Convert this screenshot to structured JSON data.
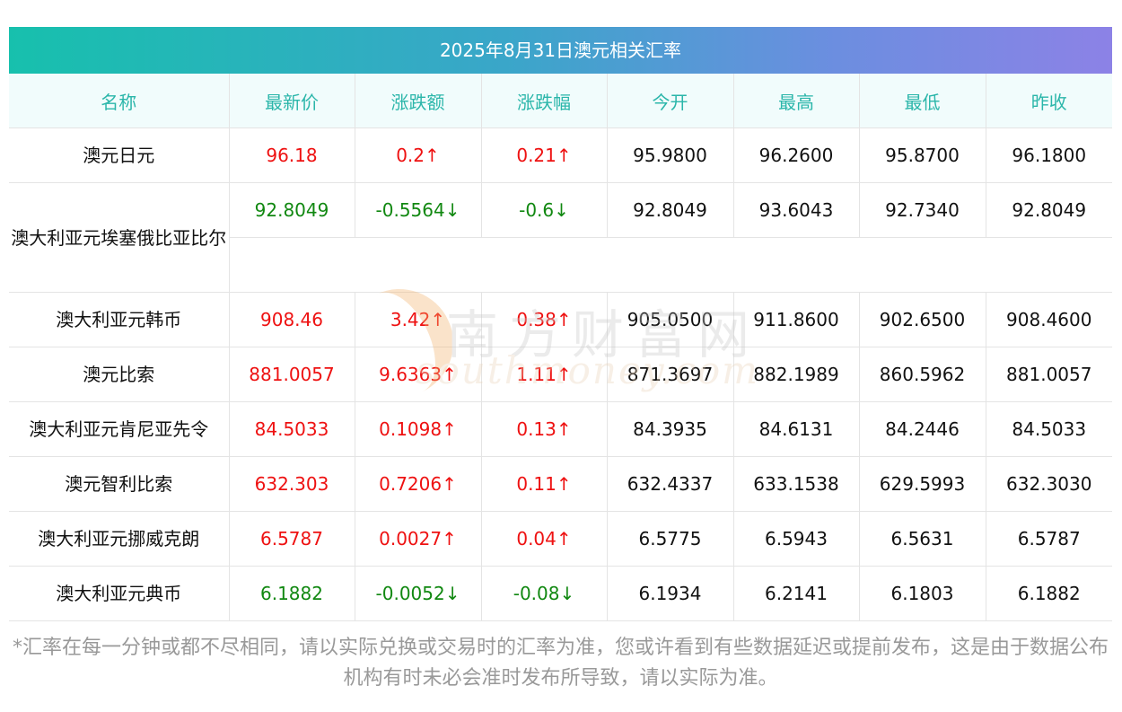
{
  "title": "2025年8月31日澳元相关汇率",
  "headers": [
    "名称",
    "最新价",
    "涨跌额",
    "涨跌幅",
    "今开",
    "最高",
    "最低",
    "昨收"
  ],
  "rows": [
    {
      "name": "澳元日元",
      "latest": "96.18",
      "change": "0.2↑",
      "pct": "0.21↑",
      "open": "95.9800",
      "high": "96.2600",
      "low": "95.8700",
      "prev": "96.1800",
      "dir": "up"
    },
    {
      "name": "澳大利亚元埃塞俄比亚比尔",
      "latest": "92.8049",
      "change": "-0.5564↓",
      "pct": "-0.6↓",
      "open": "92.8049",
      "high": "93.6043",
      "low": "92.7340",
      "prev": "92.8049",
      "dir": "down"
    },
    {
      "name": "澳大利亚元韩币",
      "latest": "908.46",
      "change": "3.42↑",
      "pct": "0.38↑",
      "open": "905.0500",
      "high": "911.8600",
      "low": "902.6500",
      "prev": "908.4600",
      "dir": "up"
    },
    {
      "name": "澳元比索",
      "latest": "881.0057",
      "change": "9.6363↑",
      "pct": "1.11↑",
      "open": "871.3697",
      "high": "882.1989",
      "low": "860.5962",
      "prev": "881.0057",
      "dir": "up"
    },
    {
      "name": "澳大利亚元肯尼亚先令",
      "latest": "84.5033",
      "change": "0.1098↑",
      "pct": "0.13↑",
      "open": "84.3935",
      "high": "84.6131",
      "low": "84.2446",
      "prev": "84.5033",
      "dir": "up"
    },
    {
      "name": "澳元智利比索",
      "latest": "632.303",
      "change": "0.7206↑",
      "pct": "0.11↑",
      "open": "632.4337",
      "high": "633.1538",
      "low": "629.5993",
      "prev": "632.3030",
      "dir": "up"
    },
    {
      "name": "澳大利亚元挪威克朗",
      "latest": "6.5787",
      "change": "0.0027↑",
      "pct": "0.04↑",
      "open": "6.5775",
      "high": "6.5943",
      "low": "6.5631",
      "prev": "6.5787",
      "dir": "up"
    },
    {
      "name": "澳大利亚元典币",
      "latest": "6.1882",
      "change": "-0.0052↓",
      "pct": "-0.08↓",
      "open": "6.1934",
      "high": "6.2141",
      "low": "6.1803",
      "prev": "6.1882",
      "dir": "down"
    }
  ],
  "note": "*汇率在每一分钟或都不尽相同，请以实际兑换或交易时的汇率为准，您或许看到有些数据延迟或提前发布，这是由于数据公布机构有时未必会准时发布所导致，请以实际为准。",
  "watermark": {
    "cn": "南方财富网",
    "en": "southmoney.com"
  },
  "colors": {
    "up": "#ee1111",
    "down": "#118811",
    "header_text": "#2bb6aa"
  }
}
